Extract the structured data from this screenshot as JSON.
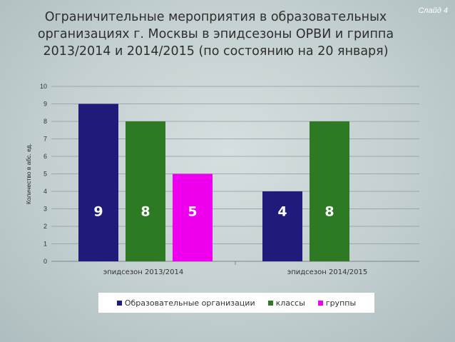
{
  "slide": {
    "title_lines": [
      "Ограничительные мероприятия в образовательных",
      "организациях  г. Москвы в эпидсезоны ОРВИ и гриппа",
      "2013/2014 и 2014/2015 (по состоянию на 20 января)"
    ],
    "number": "Слайд 4"
  },
  "chart_data": {
    "type": "bar",
    "categories": [
      "эпидсезон 2013/2014",
      "эпидсезон 2014/2015"
    ],
    "series": [
      {
        "name": "Образовательные организации",
        "values": [
          9,
          4
        ],
        "color": "#1f1b7a"
      },
      {
        "name": "классы",
        "values": [
          8,
          8
        ],
        "color": "#2e7a24"
      },
      {
        "name": "группы",
        "values": [
          5,
          null
        ],
        "color": "#ee00ee"
      }
    ],
    "ylabel": "Количество в абс. ед.",
    "xlabel": "",
    "ylim": [
      0,
      10
    ],
    "yticks": [
      "0",
      "1",
      "2",
      "3",
      "4",
      "5",
      "6",
      "7",
      "8",
      "9",
      "10"
    ],
    "grid": true,
    "legend": "bottom"
  }
}
